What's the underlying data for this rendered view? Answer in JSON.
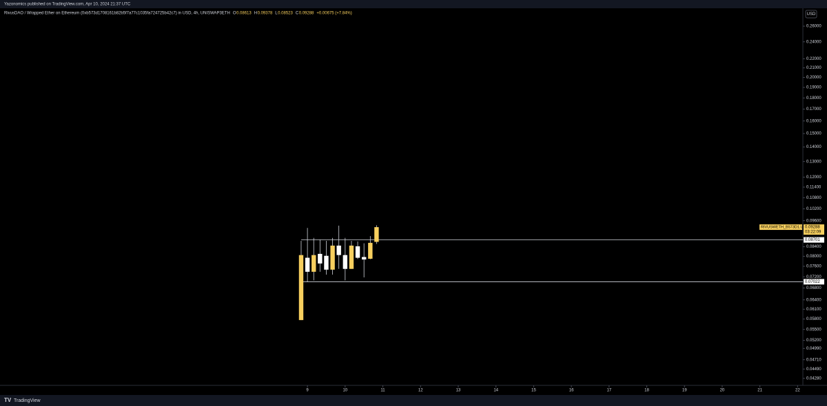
{
  "header": {
    "publisher": "Yazonomics published on TradingView.com, Apr 10, 2024 21:37 UTC",
    "symbol": "RivusDAO / Wrapped Ether on Ethereum (0xb573d1708161b82b5f7a77c1035fa724725b42c7) in USD, 4h, UNISWAP3ETH",
    "o_key": "O",
    "o": "0.08613",
    "h_key": "H",
    "h": "0.09378",
    "l_key": "L",
    "l": "0.08523",
    "c_key": "C",
    "c": "0.09288",
    "change": "+0.00675 (+7.84%)",
    "currency": "USD",
    "brand": "TradingView"
  },
  "chart_data": {
    "type": "candlestick",
    "log_scale": true,
    "up_color": "#f7cf5e",
    "down_color": "#ffffff",
    "x": [
      8.833,
      9.0,
      9.167,
      9.333,
      9.5,
      9.667,
      9.833,
      10.0,
      10.167,
      10.333,
      10.5,
      10.667,
      10.833
    ],
    "open": [
      0.0577,
      0.0794,
      0.0739,
      0.081,
      0.0802,
      0.0747,
      0.0845,
      0.0805,
      0.075,
      0.0842,
      0.0797,
      0.079,
      0.08613
    ],
    "high": [
      0.0866,
      0.0925,
      0.0879,
      0.0872,
      0.0866,
      0.0879,
      0.0936,
      0.0879,
      0.0866,
      0.0863,
      0.0855,
      0.0887,
      0.09378
    ],
    "low": [
      0.0577,
      0.0701,
      0.0707,
      0.0739,
      0.0728,
      0.0728,
      0.075,
      0.0707,
      0.075,
      0.0789,
      0.0718,
      0.0788,
      0.08523
    ],
    "close": [
      0.0805,
      0.0739,
      0.0805,
      0.0771,
      0.0747,
      0.0845,
      0.0805,
      0.075,
      0.0845,
      0.0794,
      0.0787,
      0.0857,
      0.09288
    ],
    "xlim": [
      0.846,
      22.14
    ],
    "xticks": [
      9,
      10,
      11,
      12,
      13,
      14,
      15,
      16,
      17,
      18,
      19,
      20,
      21,
      22
    ],
    "ylim": [
      0.0413,
      0.285
    ],
    "yticks": [
      {
        "value": 0.26,
        "label": "0.26000"
      },
      {
        "value": 0.24,
        "label": "0.24000"
      },
      {
        "value": 0.22,
        "label": "0.22000"
      },
      {
        "value": 0.21,
        "label": "0.21000"
      },
      {
        "value": 0.2,
        "label": "0.20000"
      },
      {
        "value": 0.19,
        "label": "0.19000"
      },
      {
        "value": 0.18,
        "label": "0.18000"
      },
      {
        "value": 0.17,
        "label": "0.17000"
      },
      {
        "value": 0.16,
        "label": "0.16000"
      },
      {
        "value": 0.15,
        "label": "0.15000"
      },
      {
        "value": 0.14,
        "label": "0.14000"
      },
      {
        "value": 0.13,
        "label": "0.13000"
      },
      {
        "value": 0.12,
        "label": "0.12000"
      },
      {
        "value": 0.114,
        "label": "0.11400"
      },
      {
        "value": 0.108,
        "label": "0.10800"
      },
      {
        "value": 0.102,
        "label": "0.10200"
      },
      {
        "value": 0.096,
        "label": "0.09600"
      },
      {
        "value": 0.084,
        "label": "0.08400"
      },
      {
        "value": 0.08,
        "label": "0.08000"
      },
      {
        "value": 0.076,
        "label": "0.07600"
      },
      {
        "value": 0.072,
        "label": "0.07200"
      },
      {
        "value": 0.068,
        "label": "0.06800"
      },
      {
        "value": 0.064,
        "label": "0.06400"
      },
      {
        "value": 0.061,
        "label": "0.06100"
      },
      {
        "value": 0.058,
        "label": "0.05800"
      },
      {
        "value": 0.055,
        "label": "0.05500"
      },
      {
        "value": 0.052,
        "label": "0.05200"
      },
      {
        "value": 0.0499,
        "label": "0.04990"
      },
      {
        "value": 0.0471,
        "label": "0.04710"
      },
      {
        "value": 0.0449,
        "label": "0.04490"
      },
      {
        "value": 0.0428,
        "label": "0.04280"
      }
    ],
    "levels": [
      {
        "value": 0.08701,
        "label": "0.08701"
      },
      {
        "value": 0.07022,
        "label": "0.07022"
      }
    ],
    "last_price": {
      "symbol": "RIVUSWETH_B573D1.USD",
      "value": 0.09288,
      "label": "0.09288",
      "countdown": "03:22:09"
    }
  }
}
